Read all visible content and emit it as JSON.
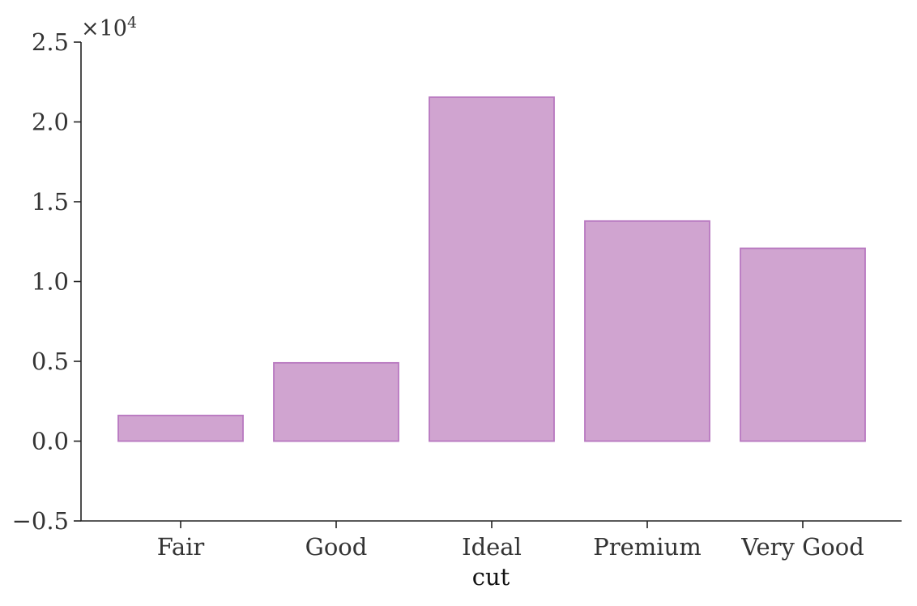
{
  "chart_data": {
    "type": "bar",
    "title": "",
    "xlabel": "cut",
    "ylabel": "",
    "categories": [
      "Fair",
      "Good",
      "Ideal",
      "Premium",
      "Very Good"
    ],
    "values": [
      1610,
      4906,
      21551,
      13791,
      12082
    ],
    "ylim": [
      -5000,
      25000
    ],
    "y_ticks": [
      -5000,
      0,
      5000,
      10000,
      15000,
      20000,
      25000
    ],
    "y_tick_labels": [
      "−0.5",
      "0.0",
      "0.5",
      "1.0",
      "1.5",
      "2.0",
      "2.5"
    ],
    "y_offset_label": "×10",
    "y_offset_exponent": "4",
    "grid": false,
    "legend": "none",
    "bar_color": "#d0a4d0",
    "bar_edge_color": "#b878c0",
    "axis_color": "#222222"
  }
}
